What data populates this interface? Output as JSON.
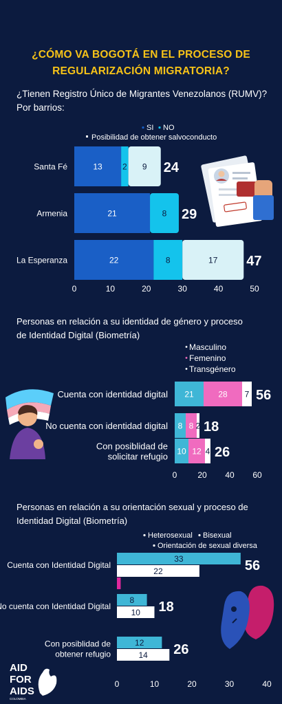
{
  "title_lines": [
    "¿CÓMO VA BOGOTÁ EN EL PROCESO DE",
    "REGULARIZACIÓN MIGRATORIA?"
  ],
  "colors": {
    "background": "#0c1b3f",
    "title": "#f7c318",
    "blue": "#1a5fc6",
    "cyan": "#14c3ec",
    "light": "#d9f2f7",
    "pink": "#f06bbf",
    "white": "#ffffff",
    "teal": "#3fb6d6",
    "magenta": "#e0289d"
  },
  "chart_data": [
    {
      "type": "bar",
      "orientation": "horizontal",
      "stacked": true,
      "title": "¿Tienen Registro Único de Migrantes Venezolanos (RUMV)? Por barrios:",
      "title_lines": [
        "¿Tienen Registro Único de Migrantes Venezolanos (RUMV)?",
        "Por barrios:"
      ],
      "legend_line1": [
        "SI",
        "NO"
      ],
      "legend_line2": "Posibilidad de obtener salvoconducto",
      "categories": [
        "Santa Fé",
        "Armenia",
        "La Esperanza"
      ],
      "series": [
        {
          "name": "SI",
          "values": [
            13,
            21,
            22
          ]
        },
        {
          "name": "NO",
          "values": [
            2,
            8,
            8
          ]
        },
        {
          "name": "Posibilidad de obtener salvoconducto",
          "values": [
            9,
            0,
            17
          ]
        }
      ],
      "totals": [
        "24",
        "29",
        "47"
      ],
      "xticks": [
        0,
        10,
        20,
        30,
        40,
        50
      ],
      "xlim": [
        0,
        50
      ],
      "grid": false
    },
    {
      "type": "bar",
      "orientation": "horizontal",
      "stacked": true,
      "title": "Personas en relación a su identidad de género y proceso de Identidad Digital (Biometría)",
      "title_lines": [
        "Personas en relación a su identidad de género y proceso",
        "de Identidad Digital (Biometría)"
      ],
      "legend": [
        "Masculino",
        "Femenino",
        "Transgénero"
      ],
      "categories": [
        "Cuenta con identidad digital",
        "No cuenta con identidad digital",
        "Con posiblidad de solicitar refugio"
      ],
      "category_lines": [
        [
          "Cuenta con identidad digital"
        ],
        [
          "No cuenta con identidad digital"
        ],
        [
          "Con posiblidad de",
          "solicitar refugio"
        ]
      ],
      "series": [
        {
          "name": "Masculino",
          "values": [
            21,
            8,
            10
          ]
        },
        {
          "name": "Femenino",
          "values": [
            28,
            8,
            12
          ]
        },
        {
          "name": "Transgénero",
          "values": [
            7,
            2,
            4
          ]
        }
      ],
      "totals": [
        "56",
        "18",
        "26"
      ],
      "xticks": [
        0,
        20,
        40,
        60
      ],
      "xlim": [
        0,
        60
      ],
      "grid": false
    },
    {
      "type": "bar",
      "orientation": "horizontal",
      "stacked": false,
      "title": "Personas en relación a su orientación sexual y proceso de Identidad Digital (Biometría)",
      "title_lines": [
        "Personas en relación a su orientación sexual y proceso de",
        "Identidad Digital (Biometría)"
      ],
      "legend_line1": [
        "Heterosexual",
        "Bisexual"
      ],
      "legend_line2": "Orientación de sexual diversa",
      "categories": [
        "Cuenta con Identidad Digital",
        "No cuenta con Identidad Digital",
        "Con posiblidad de obtener refugio"
      ],
      "category_lines": [
        [
          "Cuenta con Identidad Digital"
        ],
        [
          "No cuenta con Identidad Digital"
        ],
        [
          "Con posiblidad de",
          "obtener refugio"
        ]
      ],
      "series": [
        {
          "name": "Heterosexual",
          "values": [
            33,
            8,
            12
          ]
        },
        {
          "name": "Bisexual",
          "values": [
            22,
            10,
            14
          ]
        },
        {
          "name": "Orientación de sexual diversa",
          "values": [
            1,
            0,
            0
          ]
        }
      ],
      "totals": [
        "56",
        "18",
        "26"
      ],
      "xticks": [
        0,
        10,
        20,
        30,
        40
      ],
      "xlim": [
        0,
        40
      ],
      "grid": false
    }
  ],
  "logo": {
    "lines": [
      "AID",
      "FOR",
      "AIDS"
    ],
    "sub": "COLOMBIA"
  }
}
